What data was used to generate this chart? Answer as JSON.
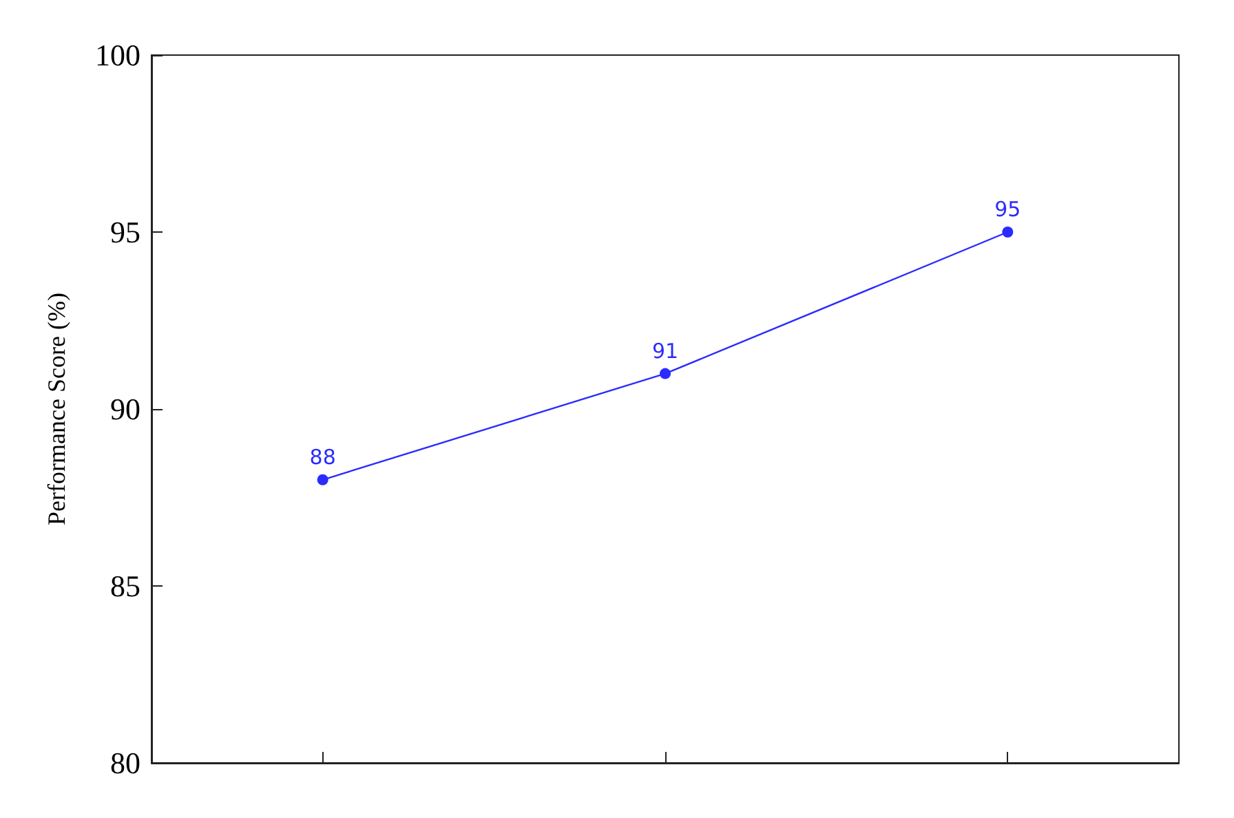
{
  "chart_data": {
    "type": "line",
    "ylabel": "Performance Score (%)",
    "categories": [
      null,
      null,
      null
    ],
    "series": [
      {
        "color": "#2b2bff",
        "values": [
          88,
          91,
          95
        ]
      }
    ],
    "ylim": [
      80,
      100
    ],
    "yticks": [
      80,
      85,
      90,
      95,
      100
    ],
    "data_labels": true,
    "marker": "circle",
    "line_style": "solid"
  }
}
